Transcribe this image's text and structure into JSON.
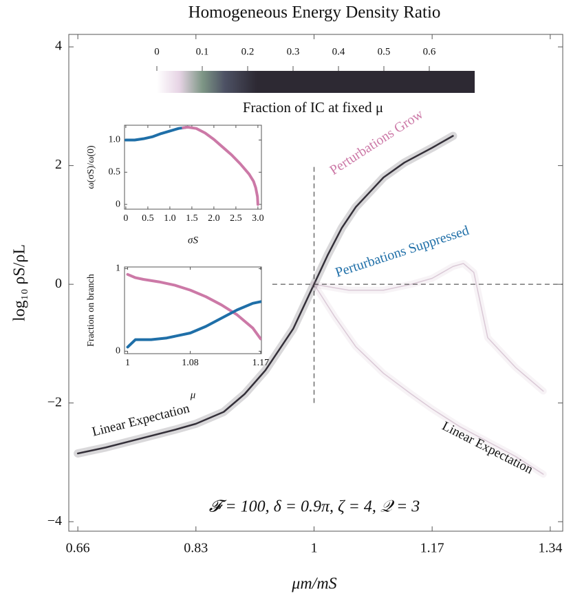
{
  "chart_data": [
    {
      "type": "line",
      "title": "Homogeneous Energy Density Ratio",
      "xlabel": "μm/mS",
      "ylabel": "log₁₀ ρS/ρL",
      "xlim": [
        0.647,
        1.358
      ],
      "ylim": [
        -4.16,
        4.21
      ],
      "xticks": [
        0.66,
        0.83,
        1,
        1.17,
        1.34
      ],
      "yticks": [
        {
          "value": -4,
          "label": "−4"
        },
        {
          "value": -2,
          "label": "−2"
        },
        0,
        2,
        4
      ],
      "series": [
        {
          "color": "#2b2730",
          "x": [
            0.66,
            0.7,
            0.75,
            0.8,
            0.83,
            0.87,
            0.9,
            0.93,
            0.95,
            0.97,
            0.98,
            0.99,
            1.0,
            1.01,
            1.02,
            1.04,
            1.06,
            1.08,
            1.1,
            1.13,
            1.17,
            1.2
          ],
          "values": [
            -2.85,
            -2.75,
            -2.6,
            -2.45,
            -2.35,
            -2.15,
            -1.85,
            -1.45,
            -1.1,
            -0.75,
            -0.5,
            -0.25,
            0,
            0.25,
            0.5,
            0.95,
            1.3,
            1.55,
            1.8,
            2.05,
            2.3,
            2.5
          ]
        },
        {
          "color": "#b08aa8",
          "x": [
            1.0,
            1.03,
            1.06,
            1.1,
            1.14,
            1.17,
            1.21,
            1.25,
            1.29,
            1.33
          ],
          "values": [
            0,
            -0.55,
            -1.05,
            -1.5,
            -1.85,
            -2.1,
            -2.4,
            -2.65,
            -2.9,
            -3.2
          ]
        },
        {
          "color": "#b08aa8",
          "x": [
            1.0,
            1.05,
            1.1,
            1.14,
            1.17,
            1.2,
            1.215,
            1.23,
            1.25,
            1.29,
            1.33
          ],
          "values": [
            0,
            -0.1,
            -0.1,
            0.0,
            0.1,
            0.3,
            0.35,
            0.2,
            -0.9,
            -1.4,
            -1.8
          ]
        }
      ],
      "vline": {
        "x": 1,
        "y": [
          -2,
          2
        ]
      },
      "hline": {
        "y": 0,
        "x": [
          0.94,
          1.358
        ]
      },
      "annotations": [
        "Perturbations Grow",
        "Perturbations Suppressed",
        "Linear Expectation",
        "Linear Expectation",
        "𝓕 = 100, δ = 0.9π, ζ = 4, 𝒬 = 3"
      ],
      "colorbar": {
        "label": "Fraction of IC at fixed μ",
        "lim": [
          0,
          0.7
        ],
        "ticks": [
          0,
          0.1,
          0.2,
          0.3,
          0.4,
          0.5,
          0.6
        ],
        "stops": [
          0,
          0.05,
          0.1,
          0.15,
          0.22,
          0.7
        ],
        "colors": [
          "#ffffff",
          "#e6d3e4",
          "#7e9786",
          "#4d5164",
          "#2d2933",
          "#2d2933"
        ]
      }
    },
    {
      "type": "line",
      "xlabel": "σS",
      "ylabel": "ω(σS)/ω(0)",
      "xlim": [
        -0.03,
        3.08
      ],
      "ylim": [
        -0.074,
        1.23
      ],
      "xticks": [
        0,
        0.5,
        {
          "value": 1,
          "label": "1.0"
        },
        1.5,
        {
          "value": 2,
          "label": "2.0"
        },
        2.5,
        {
          "value": 3,
          "label": "3.0"
        }
      ],
      "yticks": [
        0,
        0.5,
        {
          "value": 1,
          "label": "1.0"
        }
      ],
      "series": [
        {
          "color": "#1f6fa8",
          "x": [
            0,
            0.2,
            0.4,
            0.6,
            0.8,
            1.0,
            1.2,
            1.4
          ],
          "values": [
            1.0,
            1.0,
            1.02,
            1.05,
            1.1,
            1.14,
            1.18,
            1.2
          ]
        },
        {
          "color": "#cc79a7",
          "x": [
            1.3,
            1.4,
            1.6,
            1.8,
            2.0,
            2.2,
            2.4,
            2.6,
            2.8,
            2.9,
            2.95,
            2.99,
            3.0
          ],
          "values": [
            1.19,
            1.2,
            1.18,
            1.11,
            1.01,
            0.89,
            0.77,
            0.63,
            0.47,
            0.36,
            0.26,
            0.12,
            0
          ]
        }
      ]
    },
    {
      "type": "line",
      "xlabel": "μ",
      "ylabel": "Fraction on branch",
      "xlim": [
        0.996,
        1.171
      ],
      "ylim": [
        -0.03,
        1.02
      ],
      "xticks": [
        1,
        1.08,
        1.17
      ],
      "yticks": [
        0,
        1
      ],
      "series": [
        {
          "color": "#cc79a7",
          "x": [
            1,
            1.01,
            1.02,
            1.04,
            1.06,
            1.08,
            1.1,
            1.12,
            1.14,
            1.16,
            1.17
          ],
          "values": [
            0.93,
            0.89,
            0.87,
            0.84,
            0.8,
            0.74,
            0.66,
            0.56,
            0.44,
            0.28,
            0.15
          ]
        },
        {
          "color": "#1f6fa8",
          "x": [
            1,
            1.01,
            1.03,
            1.05,
            1.08,
            1.1,
            1.12,
            1.14,
            1.16,
            1.17
          ],
          "values": [
            0.05,
            0.14,
            0.14,
            0.16,
            0.22,
            0.3,
            0.4,
            0.5,
            0.58,
            0.6
          ]
        }
      ]
    }
  ]
}
